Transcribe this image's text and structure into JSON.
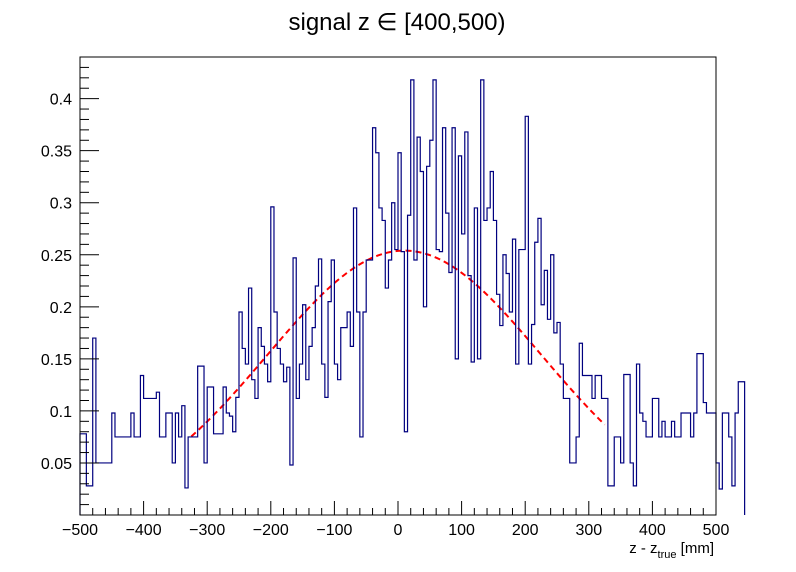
{
  "chart_data": {
    "type": "histogram",
    "title": "signal z ∈ [400,500)",
    "xlabel": {
      "main": "z - z",
      "sub": "true",
      "unit": " [mm]"
    },
    "ylabel": "",
    "xlim": [
      -500,
      500
    ],
    "ylim": [
      0,
      0.44
    ],
    "xticks": [
      -500,
      -400,
      -300,
      -200,
      -100,
      0,
      100,
      200,
      300,
      400,
      500
    ],
    "xtick_labels": [
      "−500",
      "−400",
      "−300",
      "−200",
      "−100",
      "0",
      "100",
      "200",
      "300",
      "400",
      "500"
    ],
    "yticks": [
      0.05,
      0.1,
      0.15,
      0.2,
      0.25,
      0.3,
      0.35,
      0.4
    ],
    "ytick_labels": [
      "0.05",
      "0.1",
      "0.15",
      "0.2",
      "0.25",
      "0.3",
      "0.35",
      "0.4"
    ],
    "bin_width": 5,
    "x_start": -500,
    "hist_color": "#00007f",
    "fit_color": "#ff0000",
    "values": [
      0.078,
      0.078,
      0.028,
      0.028,
      0.17,
      0.05,
      0.05,
      0.05,
      0.05,
      0.05,
      0.098,
      0.075,
      0.075,
      0.075,
      0.075,
      0.075,
      0.098,
      0.075,
      0.075,
      0.134,
      0.112,
      0.112,
      0.112,
      0.112,
      0.118,
      0.075,
      0.075,
      0.098,
      0.098,
      0.05,
      0.098,
      0.075,
      0.105,
      0.026,
      0.075,
      0.075,
      0.075,
      0.143,
      0.143,
      0.05,
      0.123,
      0.123,
      0.078,
      0.078,
      0.078,
      0.123,
      0.098,
      0.095,
      0.08,
      0.113,
      0.195,
      0.16,
      0.145,
      0.218,
      0.13,
      0.112,
      0.18,
      0.162,
      0.145,
      0.128,
      0.296,
      0.195,
      0.16,
      0.145,
      0.128,
      0.142,
      0.048,
      0.247,
      0.112,
      0.145,
      0.202,
      0.13,
      0.162,
      0.18,
      0.22,
      0.246,
      0.145,
      0.113,
      0.205,
      0.245,
      0.145,
      0.13,
      0.18,
      0.18,
      0.195,
      0.162,
      0.295,
      0.195,
      0.075,
      0.195,
      0.245,
      0.245,
      0.372,
      0.348,
      0.295,
      0.283,
      0.218,
      0.245,
      0.3,
      0.255,
      0.348,
      0.253,
      0.08,
      0.288,
      0.418,
      0.245,
      0.363,
      0.33,
      0.2,
      0.335,
      0.36,
      0.418,
      0.255,
      0.253,
      0.372,
      0.29,
      0.233,
      0.372,
      0.15,
      0.345,
      0.27,
      0.368,
      0.23,
      0.147,
      0.295,
      0.15,
      0.418,
      0.283,
      0.295,
      0.33,
      0.283,
      0.212,
      0.182,
      0.25,
      0.232,
      0.195,
      0.265,
      0.145,
      0.255,
      0.255,
      0.383,
      0.145,
      0.183,
      0.262,
      0.285,
      0.202,
      0.235,
      0.188,
      0.25,
      0.175,
      0.185,
      0.145,
      0.112,
      0.112,
      0.05,
      0.05,
      0.075,
      0.165,
      0.134,
      0.134,
      0.134,
      0.112,
      0.134,
      0.134,
      0.112,
      0.112,
      0.028,
      0.028,
      0.075,
      0.075,
      0.05,
      0.135,
      0.135,
      0.05,
      0.028,
      0.145,
      0.098,
      0.09,
      0.075,
      0.075,
      0.112,
      0.112,
      0.075,
      0.09,
      0.075,
      0.075,
      0.09,
      0.075,
      0.075,
      0.098,
      0.098,
      0.098,
      0.075,
      0.098,
      0.155,
      0.155,
      0.108,
      0.098,
      0.098,
      0.098,
      0.05,
      0.025,
      0.098,
      0.098,
      0.075,
      0.028,
      0.098,
      0.128,
      0.128
    ],
    "fit": {
      "type": "gaussian",
      "x_range": [
        -325,
        325
      ],
      "mean": 10,
      "sigma": 215,
      "amplitude": 0.254,
      "baseline": 0.0
    }
  }
}
